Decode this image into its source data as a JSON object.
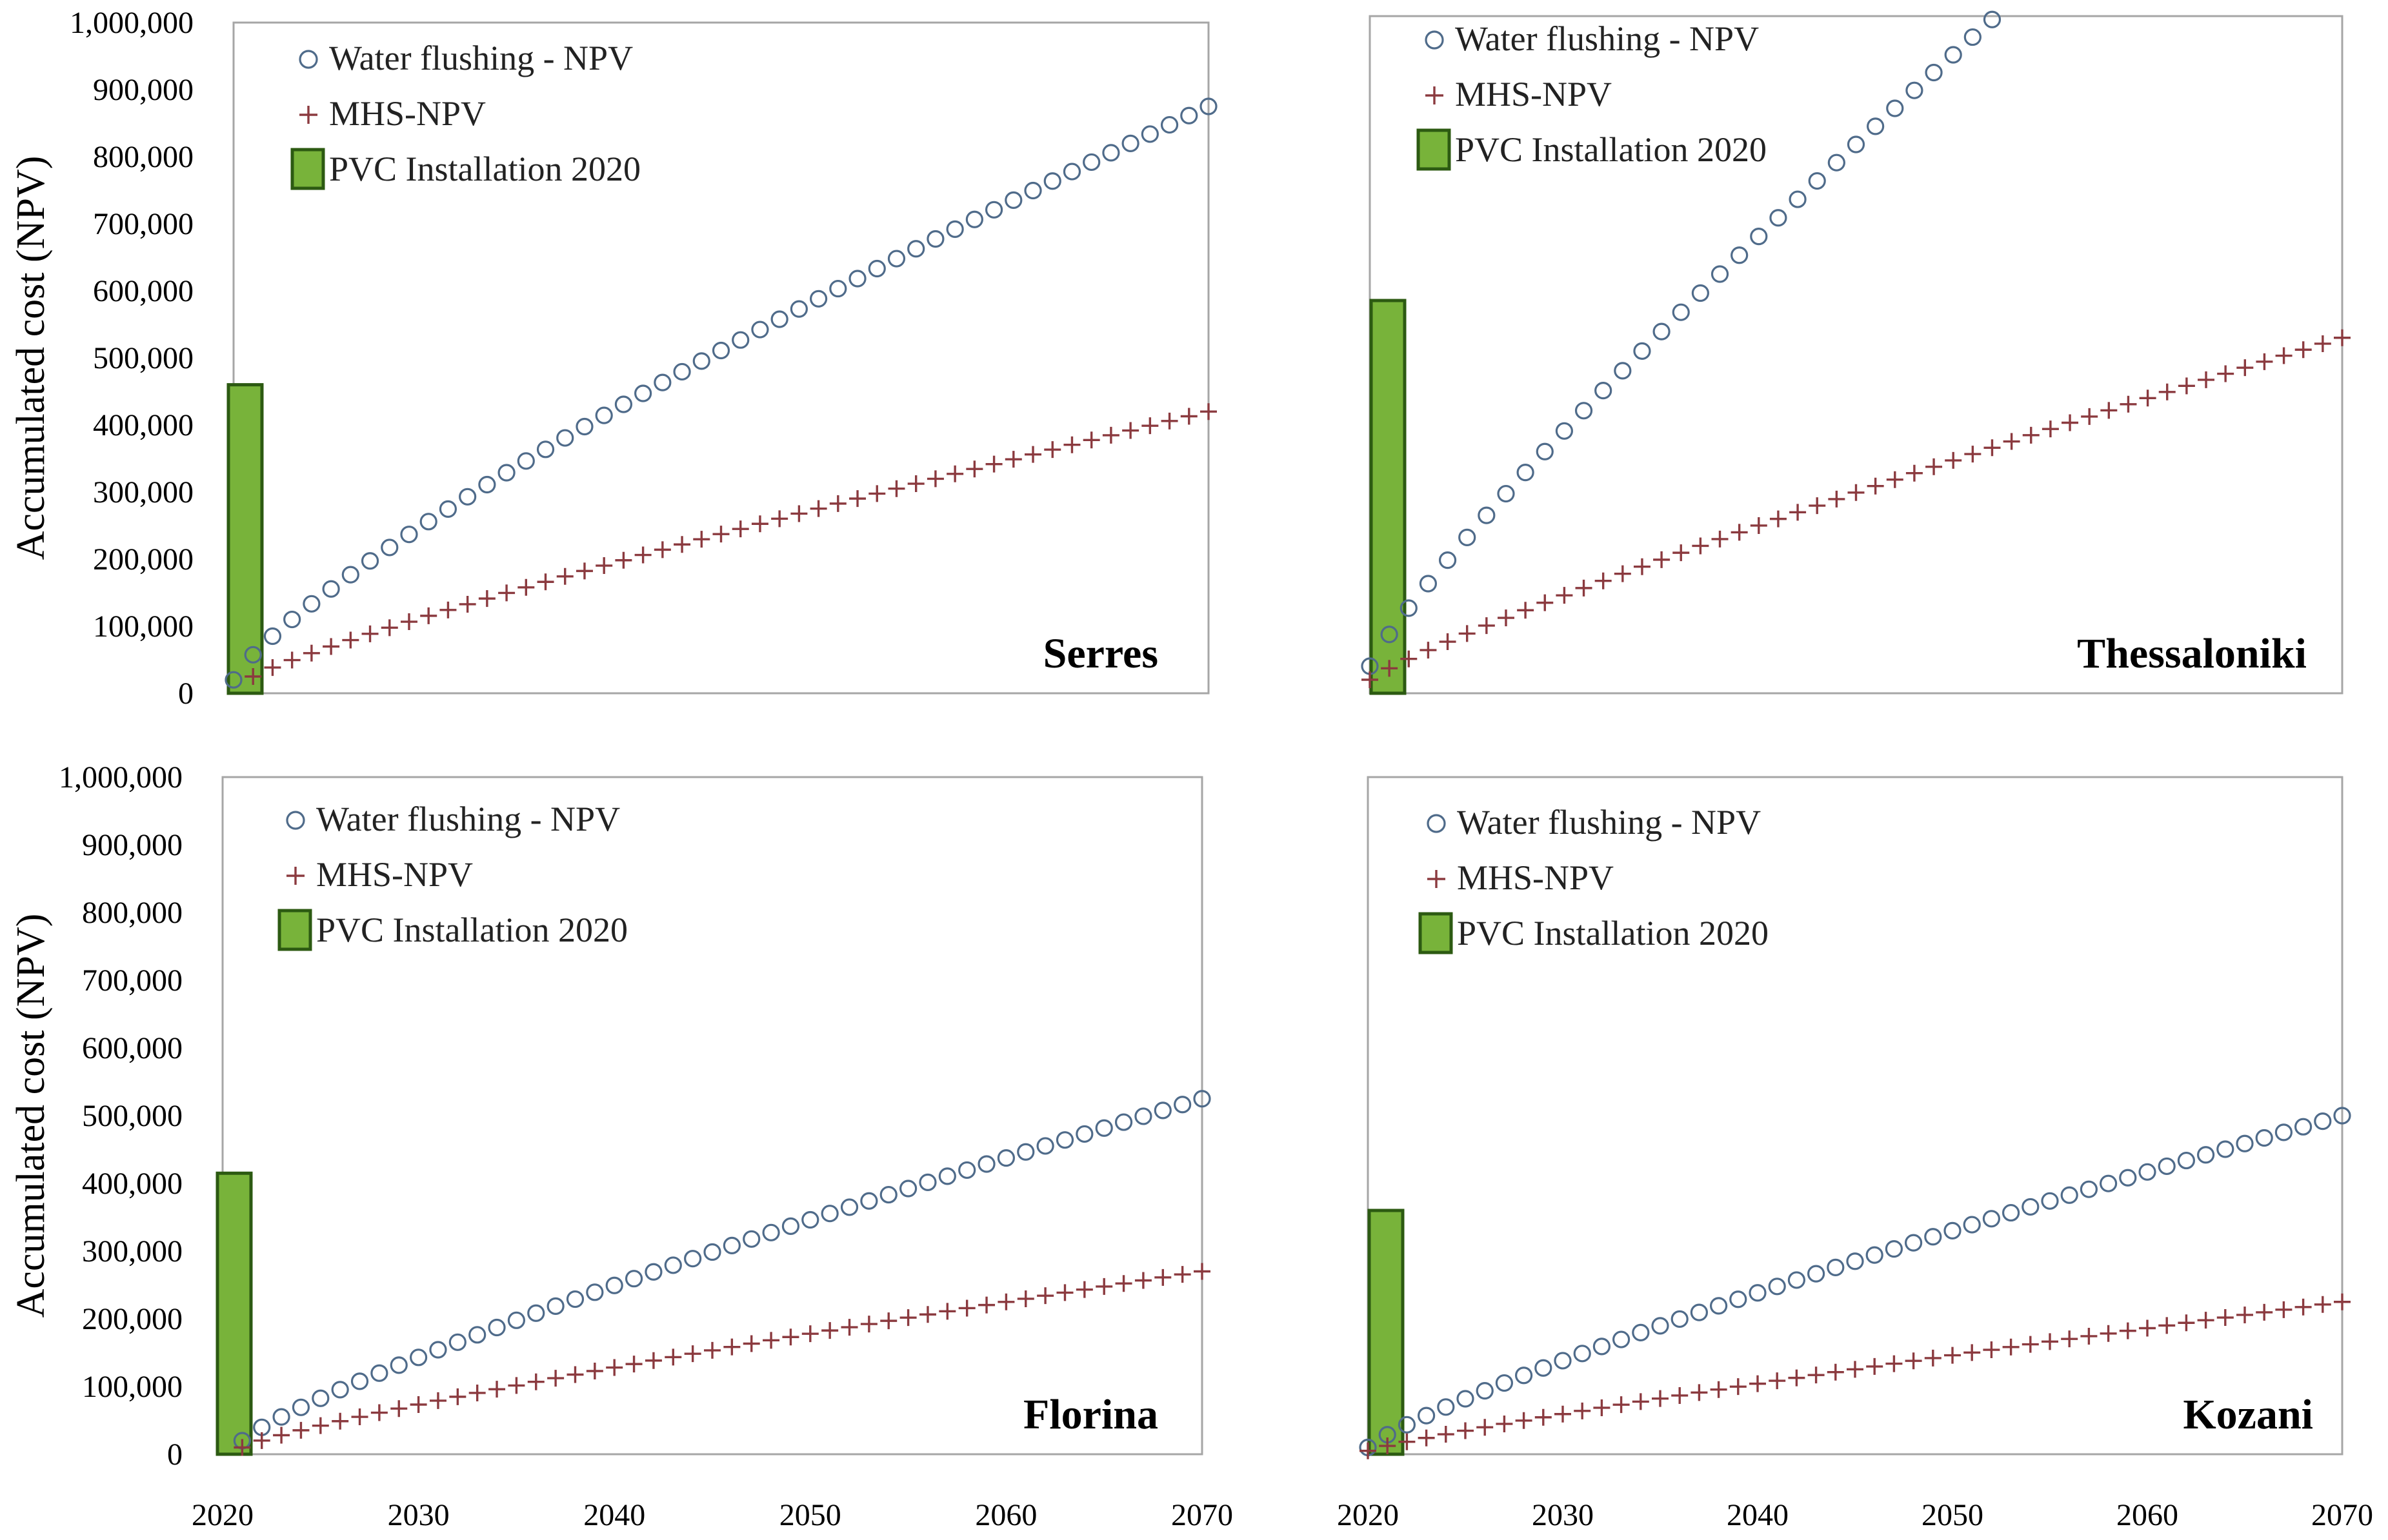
{
  "figure": {
    "y_axis_label": "Accumulated cost (NPV)",
    "y_ticks": [
      "0",
      "100,000",
      "200,000",
      "300,000",
      "400,000",
      "500,000",
      "600,000",
      "700,000",
      "800,000",
      "900,000",
      "1,000,000"
    ],
    "x_ticks": [
      "2020",
      "2030",
      "2040",
      "2050",
      "2060",
      "2070"
    ]
  },
  "legend": {
    "water": "Water flushing - NPV",
    "mhs": "MHS-NPV",
    "pvc": "PVC Installation 2020"
  },
  "colors": {
    "water": "#4f6b8a",
    "mhs": "#8b3a3f",
    "pvc_fill": "#78b33a",
    "pvc_stroke": "#2c5a12"
  },
  "chart_data": [
    {
      "type": "scatter",
      "title": "Serres",
      "xlabel": "",
      "ylabel": "Accumulated cost (NPV)",
      "xlim": [
        2020,
        2070
      ],
      "ylim": [
        0,
        1000000
      ],
      "pvc_installation_2020": 460000,
      "series": [
        {
          "name": "Water flushing - NPV",
          "marker": "circle",
          "start_year": 2020,
          "end_year": 2070,
          "start": 20000,
          "end": 875000,
          "curve": 1.25
        },
        {
          "name": "MHS-NPV",
          "marker": "plus",
          "start_year": 2021,
          "end_year": 2070,
          "start": 25000,
          "end": 420000,
          "curve": 1.15
        }
      ]
    },
    {
      "type": "scatter",
      "title": "Thessaloniki",
      "xlabel": "",
      "ylabel": "",
      "xlim": [
        2020,
        2070
      ],
      "ylim": [
        0,
        1000000
      ],
      "pvc_installation_2020": 580000,
      "series": [
        {
          "name": "Water flushing - NPV",
          "marker": "circle",
          "start_year": 2020,
          "end_year": 2052,
          "start": 40000,
          "end": 995000,
          "curve": 1.15
        },
        {
          "name": "MHS-NPV",
          "marker": "plus",
          "start_year": 2020,
          "end_year": 2070,
          "start": 20000,
          "end": 525000,
          "curve": 1.15
        }
      ]
    },
    {
      "type": "scatter",
      "title": "Florina",
      "xlabel": "",
      "ylabel": "Accumulated cost (NPV)",
      "xlim": [
        2020,
        2070
      ],
      "ylim": [
        0,
        1000000
      ],
      "pvc_installation_2020": 415000,
      "series": [
        {
          "name": "Water flushing - NPV",
          "marker": "circle",
          "start_year": 2021,
          "end_year": 2070,
          "start": 20000,
          "end": 525000,
          "curve": 1.2
        },
        {
          "name": "MHS-NPV",
          "marker": "plus",
          "start_year": 2021,
          "end_year": 2070,
          "start": 10000,
          "end": 270000,
          "curve": 1.2
        }
      ]
    },
    {
      "type": "scatter",
      "title": "Kozani",
      "xlabel": "",
      "ylabel": "",
      "xlim": [
        2020,
        2070
      ],
      "ylim": [
        0,
        1000000
      ],
      "pvc_installation_2020": 360000,
      "series": [
        {
          "name": "Water flushing - NPV",
          "marker": "circle",
          "start_year": 2020,
          "end_year": 2070,
          "start": 10000,
          "end": 500000,
          "curve": 1.2
        },
        {
          "name": "MHS-NPV",
          "marker": "plus",
          "start_year": 2020,
          "end_year": 2070,
          "start": 5000,
          "end": 225000,
          "curve": 1.15
        }
      ]
    }
  ]
}
